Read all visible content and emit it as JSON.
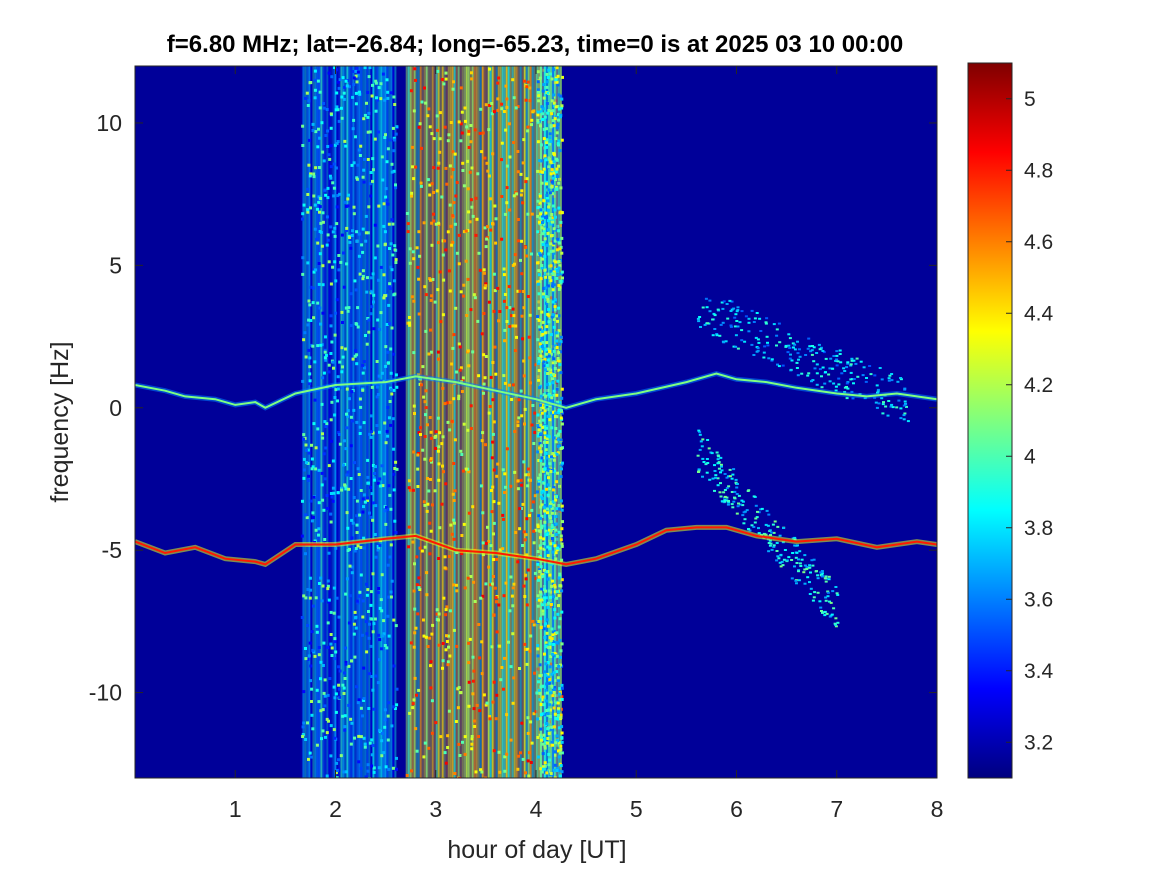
{
  "chart_data": {
    "type": "heatmap",
    "title": "f=6.80 MHz;  lat=-26.84; long=-65.23, time=0 is at 2025 03 10 00:00",
    "xlabel": "hour of day [UT]",
    "ylabel": "frequency [Hz]",
    "xlim": [
      0,
      8
    ],
    "ylim": [
      -13,
      12
    ],
    "x_ticks": [
      1,
      2,
      3,
      4,
      5,
      6,
      7,
      8
    ],
    "x_tick_labels": [
      "1",
      "2",
      "3",
      "4",
      "5",
      "6",
      "7",
      "8"
    ],
    "y_ticks": [
      10,
      5,
      0,
      -5,
      -10
    ],
    "y_tick_labels": [
      "10",
      "5",
      "0",
      "-5",
      "-10"
    ],
    "colormap": "jet",
    "clim": [
      3.1,
      5.1
    ],
    "colorbar_ticks": [
      5,
      4.8,
      4.6,
      4.4,
      4.2,
      4,
      3.8,
      3.6,
      3.4,
      3.2
    ],
    "colorbar_tick_labels": [
      "5",
      "4.8",
      "4.6",
      "4.4",
      "4.2",
      "4",
      "3.8",
      "3.6",
      "3.4",
      "3.2"
    ],
    "background_level": 3.15,
    "broadband_bands": [
      {
        "x_start": 1.65,
        "x_end": 2.6,
        "level": 3.6
      },
      {
        "x_start": 2.7,
        "x_end": 4.25,
        "level": 4.25
      },
      {
        "x_start": 4.0,
        "x_end": 4.25,
        "level": 3.8
      }
    ],
    "traces": [
      {
        "x": [
          0.0,
          0.3,
          0.5,
          0.8,
          1.0,
          1.2,
          1.3,
          1.6,
          2.0,
          2.5,
          2.8,
          3.2,
          3.6,
          4.0,
          4.3,
          4.6,
          5.0,
          5.5,
          5.8,
          6.0,
          6.3,
          6.6,
          7.0,
          7.3,
          7.6,
          8.0
        ],
        "y": [
          0.8,
          0.6,
          0.4,
          0.3,
          0.1,
          0.2,
          0.0,
          0.5,
          0.8,
          0.9,
          1.1,
          0.9,
          0.6,
          0.3,
          0.0,
          0.3,
          0.5,
          0.9,
          1.2,
          1.0,
          0.9,
          0.7,
          0.5,
          0.4,
          0.5,
          0.3
        ],
        "level": 4.1
      },
      {
        "x": [
          0.0,
          0.3,
          0.6,
          0.9,
          1.2,
          1.3,
          1.6,
          2.0,
          2.5,
          2.8,
          3.2,
          3.6,
          4.0,
          4.3,
          4.6,
          5.0,
          5.3,
          5.6,
          5.9,
          6.2,
          6.6,
          7.0,
          7.4,
          7.8,
          8.0
        ],
        "y": [
          -4.7,
          -5.1,
          -4.9,
          -5.3,
          -5.4,
          -5.5,
          -4.8,
          -4.8,
          -4.6,
          -4.5,
          -5.0,
          -5.1,
          -5.3,
          -5.5,
          -5.3,
          -4.8,
          -4.3,
          -4.2,
          -4.2,
          -4.5,
          -4.7,
          -4.6,
          -4.9,
          -4.7,
          -4.8
        ],
        "level": 4.8
      }
    ],
    "diffuse_scatter": [
      {
        "x_start": 5.6,
        "x_end": 7.7,
        "y_start": 3.5,
        "y_end": 0.2,
        "level": 3.7
      },
      {
        "x_start": 5.6,
        "x_end": 7.0,
        "y_start": -1.5,
        "y_end": -7.0,
        "level": 3.8
      }
    ]
  }
}
